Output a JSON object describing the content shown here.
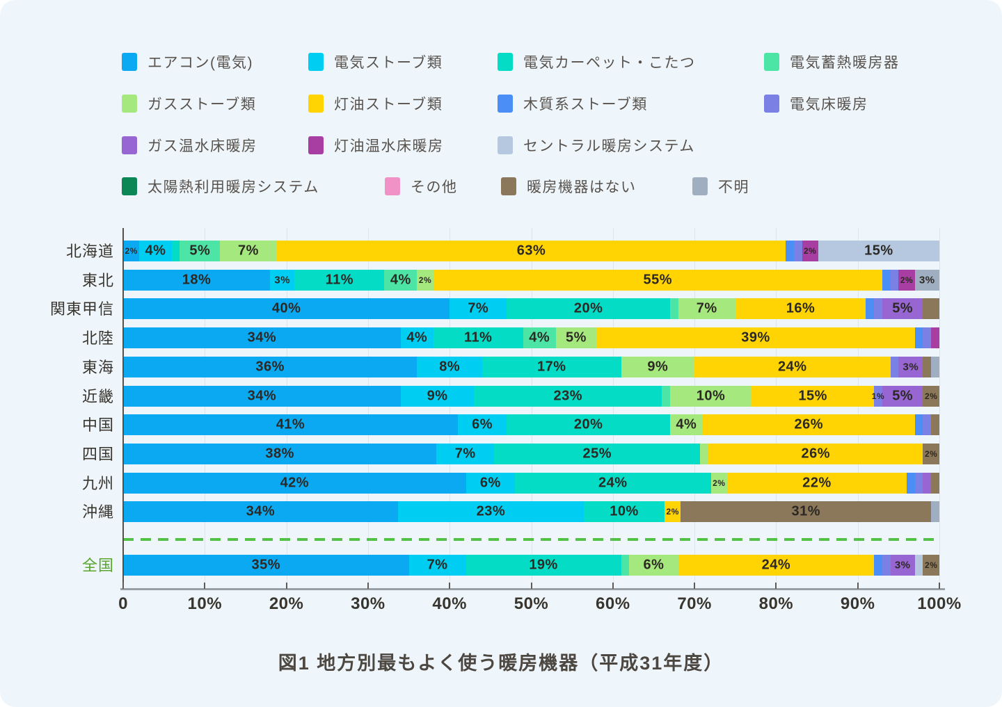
{
  "title": "図1 地方別最もよく使う暖房機器（平成31年度）",
  "colors": {
    "card_bg": "#eff6fb",
    "grid": "#dde4eb",
    "y_axis": "#55504a",
    "x_axis": "#99a0a8",
    "separator_green": "#52c146",
    "national_label": "#58a42d",
    "segment_label_text": "#2c2824",
    "legend_text": "#57524d"
  },
  "chart_data": {
    "type": "bar",
    "variant": "horizontal-stacked",
    "unit": "percent",
    "xlim": [
      0,
      100
    ],
    "grid": true,
    "x_ticks": [
      "0",
      "10%",
      "20%",
      "30%",
      "40%",
      "50%",
      "60%",
      "70%",
      "80%",
      "90%",
      "100%"
    ],
    "legend_position": "top",
    "legend": [
      {
        "id": "aircon",
        "label": "エアコン(電気)",
        "color": "#0ba9f2"
      },
      {
        "id": "estove",
        "label": "電気ストーブ類",
        "color": "#00cdf2"
      },
      {
        "id": "carpet",
        "label": "電気カーペット・こたつ",
        "color": "#04dcc6"
      },
      {
        "id": "storage",
        "label": "電気蓄熱暖房器",
        "color": "#4ce5a6"
      },
      {
        "id": "gstove",
        "label": "ガスストーブ類",
        "color": "#a5e97e"
      },
      {
        "id": "kstove",
        "label": "灯油ストーブ類",
        "color": "#ffd402"
      },
      {
        "id": "wood",
        "label": "木質系ストーブ類",
        "color": "#4b8ef5"
      },
      {
        "id": "efloor",
        "label": "電気床暖房",
        "color": "#7b80e4"
      },
      {
        "id": "gfloor",
        "label": "ガス温水床暖房",
        "color": "#9766d2"
      },
      {
        "id": "kfloor",
        "label": "灯油温水床暖房",
        "color": "#a83da2"
      },
      {
        "id": "central",
        "label": "セントラル暖房システム",
        "color": "#b6c8e0"
      },
      {
        "id": "solar",
        "label": "太陽熱利用暖房システム",
        "color": "#0b8655"
      },
      {
        "id": "other",
        "label": "その他",
        "color": "#f192c6"
      },
      {
        "id": "none",
        "label": "暖房機器はない",
        "color": "#8b785a"
      },
      {
        "id": "unknown",
        "label": "不明",
        "color": "#a0aec2"
      }
    ],
    "rows": [
      {
        "name": "北海道",
        "segments": [
          {
            "k": "aircon",
            "v": 2,
            "label": "2%"
          },
          {
            "k": "estove",
            "v": 4,
            "label": "4%"
          },
          {
            "k": "carpet",
            "v": 1,
            "label": null
          },
          {
            "k": "storage",
            "v": 5,
            "label": "5%"
          },
          {
            "k": "gstove",
            "v": 7,
            "label": "7%"
          },
          {
            "k": "kstove",
            "v": 63,
            "label": "63%"
          },
          {
            "k": "wood",
            "v": 1,
            "label": null
          },
          {
            "k": "efloor",
            "v": 1,
            "label": null
          },
          {
            "k": "kfloor",
            "v": 2,
            "label": "2%"
          },
          {
            "k": "central",
            "v": 15,
            "label": "15%"
          }
        ]
      },
      {
        "name": "東北",
        "segments": [
          {
            "k": "aircon",
            "v": 18,
            "label": "18%"
          },
          {
            "k": "estove",
            "v": 3,
            "label": "3%"
          },
          {
            "k": "carpet",
            "v": 11,
            "label": "11%"
          },
          {
            "k": "storage",
            "v": 4,
            "label": "4%"
          },
          {
            "k": "gstove",
            "v": 2,
            "label": "2%"
          },
          {
            "k": "kstove",
            "v": 55,
            "label": "55%"
          },
          {
            "k": "wood",
            "v": 1,
            "label": null
          },
          {
            "k": "efloor",
            "v": 1,
            "label": null
          },
          {
            "k": "kfloor",
            "v": 2,
            "label": "2%"
          },
          {
            "k": "unknown",
            "v": 3,
            "label": "3%"
          }
        ]
      },
      {
        "name": "関東甲信",
        "segments": [
          {
            "k": "aircon",
            "v": 40,
            "label": "40%"
          },
          {
            "k": "estove",
            "v": 7,
            "label": "7%"
          },
          {
            "k": "carpet",
            "v": 20,
            "label": "20%"
          },
          {
            "k": "storage",
            "v": 1,
            "label": null
          },
          {
            "k": "gstove",
            "v": 7,
            "label": "7%"
          },
          {
            "k": "kstove",
            "v": 16,
            "label": "16%"
          },
          {
            "k": "wood",
            "v": 1,
            "label": null
          },
          {
            "k": "efloor",
            "v": 1,
            "label": null
          },
          {
            "k": "gfloor",
            "v": 5,
            "label": "5%"
          },
          {
            "k": "none",
            "v": 2,
            "label": null
          }
        ]
      },
      {
        "name": "北陸",
        "segments": [
          {
            "k": "aircon",
            "v": 34,
            "label": "34%"
          },
          {
            "k": "estove",
            "v": 4,
            "label": "4%"
          },
          {
            "k": "carpet",
            "v": 11,
            "label": "11%"
          },
          {
            "k": "storage",
            "v": 4,
            "label": "4%"
          },
          {
            "k": "gstove",
            "v": 5,
            "label": "5%"
          },
          {
            "k": "kstove",
            "v": 39,
            "label": "39%"
          },
          {
            "k": "wood",
            "v": 1,
            "label": null
          },
          {
            "k": "efloor",
            "v": 1,
            "label": null
          },
          {
            "k": "kfloor",
            "v": 1,
            "label": null
          }
        ]
      },
      {
        "name": "東海",
        "segments": [
          {
            "k": "aircon",
            "v": 36,
            "label": "36%"
          },
          {
            "k": "estove",
            "v": 8,
            "label": "8%"
          },
          {
            "k": "carpet",
            "v": 17,
            "label": "17%"
          },
          {
            "k": "gstove",
            "v": 9,
            "label": "9%"
          },
          {
            "k": "kstove",
            "v": 24,
            "label": "24%"
          },
          {
            "k": "efloor",
            "v": 1,
            "label": null
          },
          {
            "k": "gfloor",
            "v": 3,
            "label": "3%"
          },
          {
            "k": "none",
            "v": 1,
            "label": null
          },
          {
            "k": "unknown",
            "v": 1,
            "label": null
          }
        ]
      },
      {
        "name": "近畿",
        "segments": [
          {
            "k": "aircon",
            "v": 34,
            "label": "34%"
          },
          {
            "k": "estove",
            "v": 9,
            "label": "9%"
          },
          {
            "k": "carpet",
            "v": 23,
            "label": "23%"
          },
          {
            "k": "storage",
            "v": 1,
            "label": null
          },
          {
            "k": "gstove",
            "v": 10,
            "label": "10%"
          },
          {
            "k": "kstove",
            "v": 15,
            "label": "15%"
          },
          {
            "k": "efloor",
            "v": 1,
            "label": "1%"
          },
          {
            "k": "gfloor",
            "v": 5,
            "label": "5%"
          },
          {
            "k": "none",
            "v": 2,
            "label": "2%"
          }
        ]
      },
      {
        "name": "中国",
        "segments": [
          {
            "k": "aircon",
            "v": 41,
            "label": "41%"
          },
          {
            "k": "estove",
            "v": 6,
            "label": "6%"
          },
          {
            "k": "carpet",
            "v": 20,
            "label": "20%"
          },
          {
            "k": "gstove",
            "v": 4,
            "label": "4%"
          },
          {
            "k": "kstove",
            "v": 26,
            "label": "26%"
          },
          {
            "k": "wood",
            "v": 1,
            "label": null
          },
          {
            "k": "efloor",
            "v": 1,
            "label": null
          },
          {
            "k": "none",
            "v": 1,
            "label": null
          }
        ]
      },
      {
        "name": "四国",
        "segments": [
          {
            "k": "aircon",
            "v": 38,
            "label": "38%"
          },
          {
            "k": "estove",
            "v": 7,
            "label": "7%"
          },
          {
            "k": "carpet",
            "v": 25,
            "label": "25%"
          },
          {
            "k": "gstove",
            "v": 1,
            "label": null
          },
          {
            "k": "kstove",
            "v": 26,
            "label": "26%"
          },
          {
            "k": "none",
            "v": 2,
            "label": "2%"
          }
        ]
      },
      {
        "name": "九州",
        "segments": [
          {
            "k": "aircon",
            "v": 42,
            "label": "42%"
          },
          {
            "k": "estove",
            "v": 6,
            "label": "6%"
          },
          {
            "k": "carpet",
            "v": 24,
            "label": "24%"
          },
          {
            "k": "gstove",
            "v": 2,
            "label": "2%"
          },
          {
            "k": "kstove",
            "v": 22,
            "label": "22%"
          },
          {
            "k": "wood",
            "v": 1,
            "label": null
          },
          {
            "k": "efloor",
            "v": 1,
            "label": null
          },
          {
            "k": "gfloor",
            "v": 1,
            "label": null
          },
          {
            "k": "none",
            "v": 1,
            "label": null
          }
        ]
      },
      {
        "name": "沖縄",
        "segments": [
          {
            "k": "aircon",
            "v": 34,
            "label": "34%"
          },
          {
            "k": "estove",
            "v": 23,
            "label": "23%"
          },
          {
            "k": "carpet",
            "v": 10,
            "label": "10%"
          },
          {
            "k": "kstove",
            "v": 2,
            "label": "2%"
          },
          {
            "k": "none",
            "v": 31,
            "label": "31%"
          },
          {
            "k": "unknown",
            "v": 1,
            "label": null
          }
        ]
      },
      {
        "name": "全国",
        "highlight": true,
        "segments": [
          {
            "k": "aircon",
            "v": 35,
            "label": "35%"
          },
          {
            "k": "estove",
            "v": 7,
            "label": "7%"
          },
          {
            "k": "carpet",
            "v": 19,
            "label": "19%"
          },
          {
            "k": "storage",
            "v": 1,
            "label": null
          },
          {
            "k": "gstove",
            "v": 6,
            "label": "6%"
          },
          {
            "k": "kstove",
            "v": 24,
            "label": "24%"
          },
          {
            "k": "wood",
            "v": 1,
            "label": null
          },
          {
            "k": "efloor",
            "v": 1,
            "label": null
          },
          {
            "k": "gfloor",
            "v": 3,
            "label": "3%"
          },
          {
            "k": "central",
            "v": 1,
            "label": null
          },
          {
            "k": "none",
            "v": 2,
            "label": "2%"
          }
        ]
      }
    ]
  }
}
